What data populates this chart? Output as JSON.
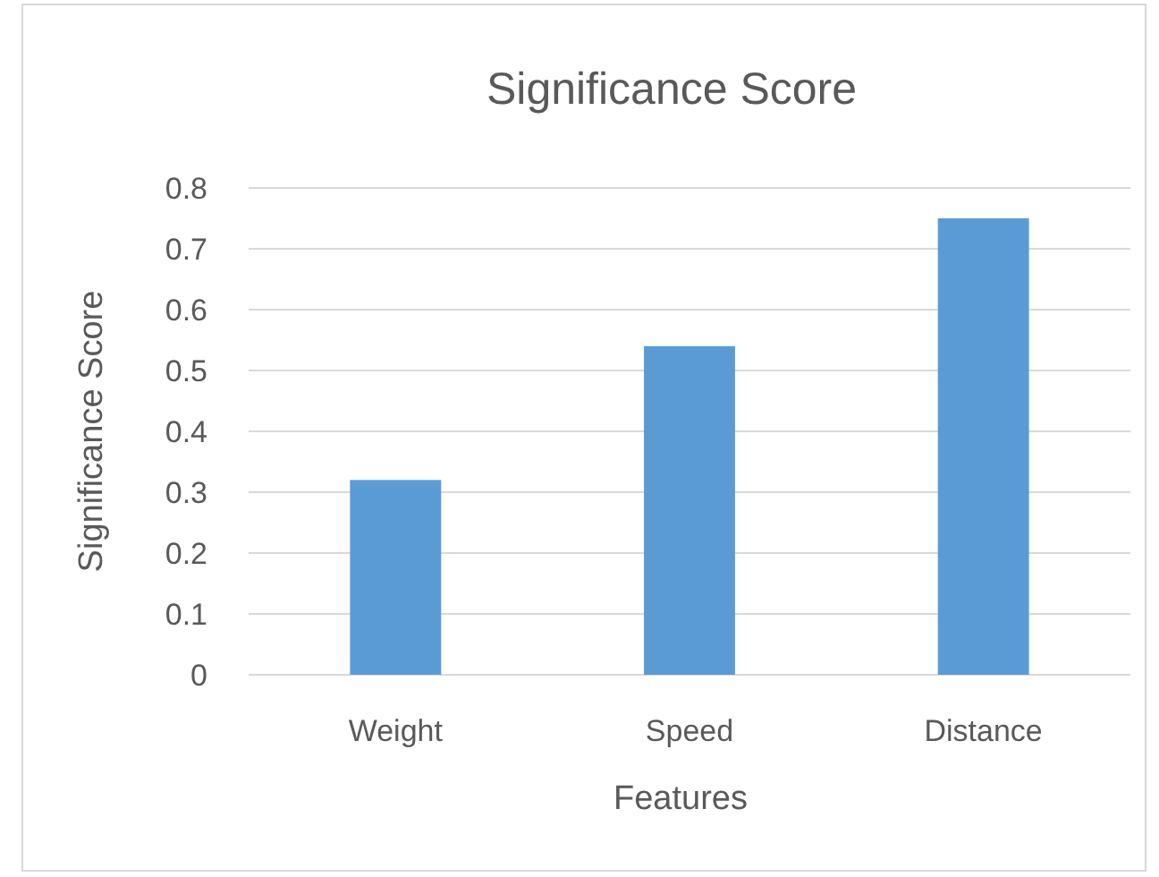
{
  "chart_data": {
    "type": "bar",
    "title": "Significance Score",
    "xlabel": "Features",
    "ylabel": "Significance Score",
    "categories": [
      "Weight",
      "Speed",
      "Distance"
    ],
    "values": [
      0.32,
      0.54,
      0.75
    ],
    "color": "#5b9bd5",
    "ylim": [
      0,
      0.8
    ],
    "yticks": [
      0,
      0.1,
      0.2,
      0.3,
      0.4,
      0.5,
      0.6,
      0.7,
      0.8
    ],
    "grid": "y"
  }
}
